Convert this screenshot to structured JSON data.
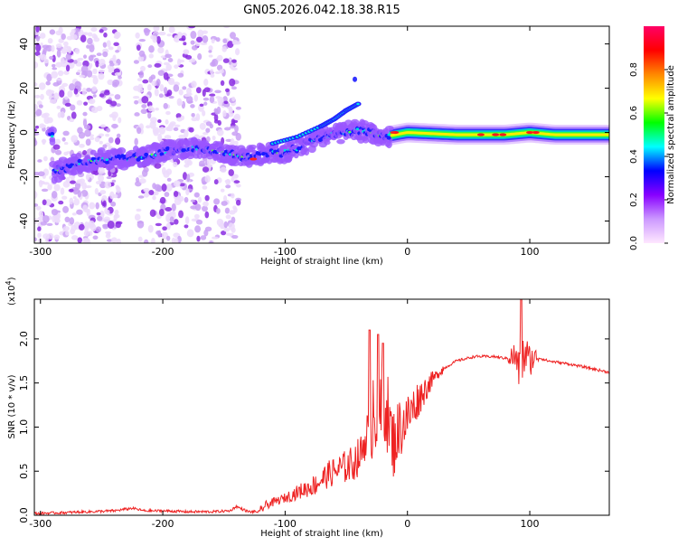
{
  "title": "GN05.2026.042.18.38.R15",
  "chart_data": [
    {
      "type": "heatmap",
      "title": "GN05.2026.042.18.38.R15",
      "xlabel": "Height of straight line (km)",
      "ylabel": "Frequency (Hz)",
      "xlim": [
        -305,
        165
      ],
      "ylim": [
        -50,
        48
      ],
      "xticks": [
        -300,
        -200,
        -100,
        0,
        100
      ],
      "yticks": [
        -40,
        -20,
        0,
        20,
        40
      ],
      "colorbar": {
        "label": "Normalized spectral amplitude",
        "range": [
          0,
          1
        ],
        "ticks": [
          "0.0",
          "0.2",
          "0.4",
          "0.6",
          "0.8"
        ],
        "colors": [
          "#ffe8ff",
          "#cc99ff",
          "#8800ff",
          "#0000ff",
          "#00ffff",
          "#00ff00",
          "#ffff00",
          "#ff8800",
          "#ff0000",
          "#ff0066"
        ]
      },
      "ridge": {
        "description_points": [
          [
            -290,
            -18
          ],
          [
            -270,
            -14
          ],
          [
            -250,
            -12
          ],
          [
            -230,
            -12
          ],
          [
            -210,
            -10
          ],
          [
            -190,
            -8
          ],
          [
            -170,
            -7
          ],
          [
            -150,
            -9
          ],
          [
            -135,
            -11
          ],
          [
            -120,
            -10
          ],
          [
            -100,
            -9
          ],
          [
            -90,
            -7
          ],
          [
            -80,
            -4
          ],
          [
            -70,
            -2
          ],
          [
            -60,
            -1
          ],
          [
            -50,
            0
          ],
          [
            -40,
            1
          ],
          [
            -30,
            0
          ],
          [
            -20,
            -2
          ],
          [
            0,
            0
          ],
          [
            40,
            -1
          ],
          [
            80,
            -1
          ],
          [
            100,
            0
          ],
          [
            120,
            -1
          ],
          [
            165,
            -1
          ]
        ],
        "upper_branch": [
          [
            -110,
            -5
          ],
          [
            -90,
            -2
          ],
          [
            -70,
            3
          ],
          [
            -60,
            6
          ],
          [
            -50,
            10
          ],
          [
            -40,
            13
          ]
        ]
      }
    },
    {
      "type": "line",
      "title": "",
      "xlabel": "Height of straight line (km)",
      "ylabel": "SNR (10 * v/v)",
      "scale_label": "(x10^4)",
      "scale_base": "(x10",
      "scale_exp": "4",
      "xlim": [
        -305,
        165
      ],
      "ylim": [
        0,
        2.45
      ],
      "xticks": [
        -300,
        -200,
        -100,
        0,
        100
      ],
      "yticks": [
        "0.0",
        "0.5",
        "1.0",
        "1.5",
        "2.0"
      ],
      "series": [
        {
          "color": "#ee2222",
          "x": [
            -305,
            -280,
            -260,
            -240,
            -225,
            -215,
            -200,
            -180,
            -160,
            -145,
            -140,
            -130,
            -120,
            -115,
            -105,
            -95,
            -85,
            -75,
            -65,
            -55,
            -45,
            -38,
            -32,
            -28,
            -22,
            -18,
            -12,
            -6,
            0,
            8,
            18,
            28,
            40,
            55,
            70,
            80,
            88,
            92,
            96,
            100,
            105,
            115,
            130,
            145,
            165
          ],
          "y": [
            0.02,
            0.03,
            0.04,
            0.05,
            0.08,
            0.05,
            0.05,
            0.04,
            0.04,
            0.05,
            0.1,
            0.04,
            0.04,
            0.1,
            0.15,
            0.2,
            0.25,
            0.3,
            0.4,
            0.45,
            0.5,
            0.6,
            0.9,
            1.3,
            1.1,
            1.3,
            0.8,
            1.0,
            1.1,
            1.3,
            1.5,
            1.65,
            1.75,
            1.8,
            1.8,
            1.78,
            1.8,
            1.6,
            1.85,
            1.75,
            1.8,
            1.75,
            1.72,
            1.68,
            1.62
          ]
        }
      ]
    }
  ]
}
